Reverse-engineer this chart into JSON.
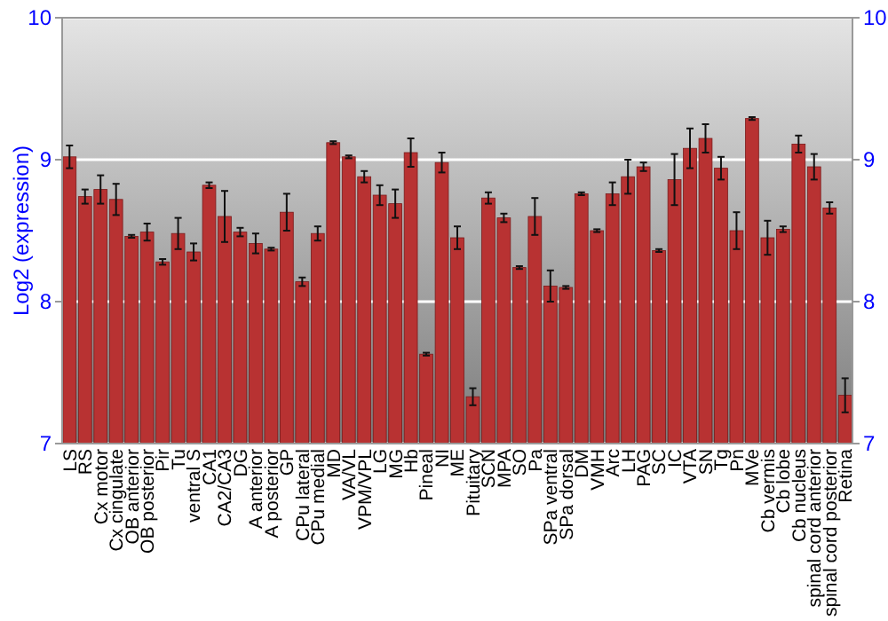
{
  "chart_data": {
    "type": "bar",
    "ylabel": "Log2 (expression)",
    "categories": [
      "LS",
      "RS",
      "Cx motor",
      "Cx cingulate",
      "OB anterior",
      "OB posterior",
      "Pir",
      "Tu",
      "ventral S",
      "CA1",
      "CA2/CA3",
      "DG",
      "A anterior",
      "A posterior",
      "GP",
      "CPu lateral",
      "CPu medial",
      "MD",
      "VA/VL",
      "VPM/VPL",
      "LG",
      "MG",
      "Hb",
      "Pineal",
      "NI",
      "ME",
      "Pituitary",
      "SCN",
      "MPA",
      "SO",
      "Pa",
      "SPa ventral",
      "SPa dorsal",
      "DM",
      "VMH",
      "Arc",
      "LH",
      "PAG",
      "SC",
      "IC",
      "VTA",
      "SN",
      "Tg",
      "Pn",
      "MVe",
      "Cb vermis",
      "Cb lobe",
      "Cb nucleus",
      "spinal cord anterior",
      "spinal cord posterior",
      "Retina"
    ],
    "values": [
      9.02,
      8.74,
      8.79,
      8.72,
      8.46,
      8.49,
      8.28,
      8.48,
      8.35,
      8.82,
      8.6,
      8.49,
      8.41,
      8.37,
      8.63,
      8.14,
      8.48,
      9.12,
      9.02,
      8.88,
      8.75,
      8.69,
      9.05,
      7.63,
      8.98,
      8.45,
      7.33,
      8.73,
      8.59,
      8.24,
      8.6,
      8.11,
      8.1,
      8.76,
      8.5,
      8.76,
      8.88,
      8.95,
      8.36,
      8.86,
      9.08,
      9.15,
      8.94,
      8.5,
      9.29,
      8.45,
      8.51,
      9.11,
      8.95,
      8.66,
      7.34
    ],
    "errors": [
      0.08,
      0.05,
      0.1,
      0.11,
      0.01,
      0.06,
      0.02,
      0.11,
      0.06,
      0.02,
      0.18,
      0.03,
      0.07,
      0.01,
      0.13,
      0.03,
      0.05,
      0.01,
      0.01,
      0.04,
      0.07,
      0.1,
      0.1,
      0.01,
      0.07,
      0.08,
      0.06,
      0.04,
      0.03,
      0.01,
      0.13,
      0.11,
      0.01,
      0.01,
      0.01,
      0.08,
      0.12,
      0.03,
      0.01,
      0.18,
      0.14,
      0.1,
      0.08,
      0.13,
      0.01,
      0.12,
      0.02,
      0.06,
      0.09,
      0.04,
      0.12
    ],
    "color": "#b83232",
    "ylim": [
      7,
      10
    ],
    "yticks": [
      7,
      8,
      9,
      10
    ],
    "y2lim": [
      7,
      10
    ],
    "y2ticks": [
      7,
      8,
      9,
      10
    ],
    "grid": "y"
  }
}
